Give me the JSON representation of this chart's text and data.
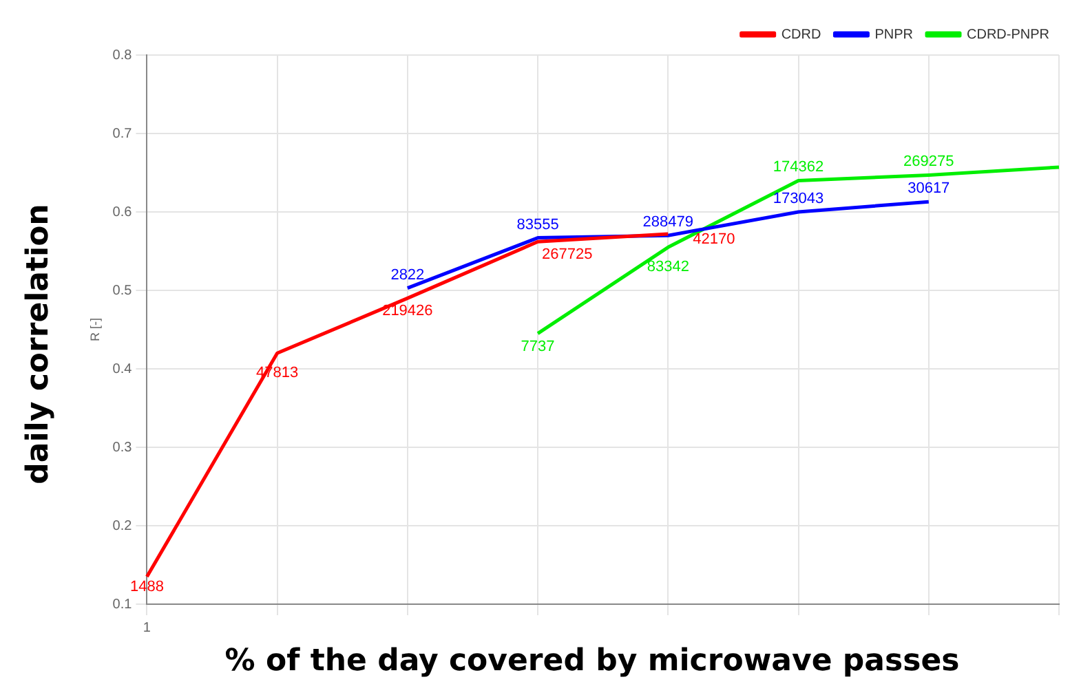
{
  "chart_data": {
    "type": "line",
    "xlabel": "% of the day covered by microwave passes",
    "ylabel": "daily correlation",
    "annotations": [
      "R [-]",
      {
        "text": "1488",
        "y": 0.135
      },
      {
        "text": "47813",
        "y": 0.42
      },
      {
        "text": "219426",
        "y": 0.49
      },
      {
        "text": "267725",
        "y": 0.562
      },
      {
        "text": "42170",
        "y": 0.572
      },
      {
        "text": "2822",
        "y": 0.503
      },
      {
        "text": "83555",
        "y": 0.567
      },
      {
        "text": "288479",
        "y": 0.57
      },
      {
        "text": "173043",
        "y": 0.6
      },
      {
        "text": "30617",
        "y": 0.613
      },
      {
        "text": "7737",
        "y": 0.445
      },
      {
        "text": "83342",
        "y": 0.555
      },
      {
        "text": "174362",
        "y": 0.64
      },
      {
        "text": "269275",
        "y": 0.647
      }
    ],
    "categories": [
      "1",
      null,
      null,
      null,
      null,
      null,
      null,
      null
    ],
    "series": [
      {
        "name": "CDRD",
        "color": "#ff0000",
        "values": [
          0.135,
          0.42,
          0.49,
          0.562,
          0.572,
          null,
          null,
          null
        ]
      },
      {
        "name": "PNPR",
        "color": "#0000ff",
        "values": [
          null,
          null,
          0.503,
          0.567,
          0.57,
          0.6,
          0.613,
          null
        ]
      },
      {
        "name": "CDRD-PNPR",
        "color": "#00ee00",
        "values": [
          null,
          null,
          null,
          0.445,
          0.555,
          0.64,
          0.647,
          0.657
        ]
      }
    ],
    "ylim": [
      0.1,
      0.8
    ],
    "yticks": [
      0.1,
      0.2,
      0.3,
      0.4,
      0.5,
      0.6,
      0.7,
      0.8
    ],
    "grid": true,
    "legend": "top right",
    "marker": "none",
    "line_style": "solid"
  }
}
